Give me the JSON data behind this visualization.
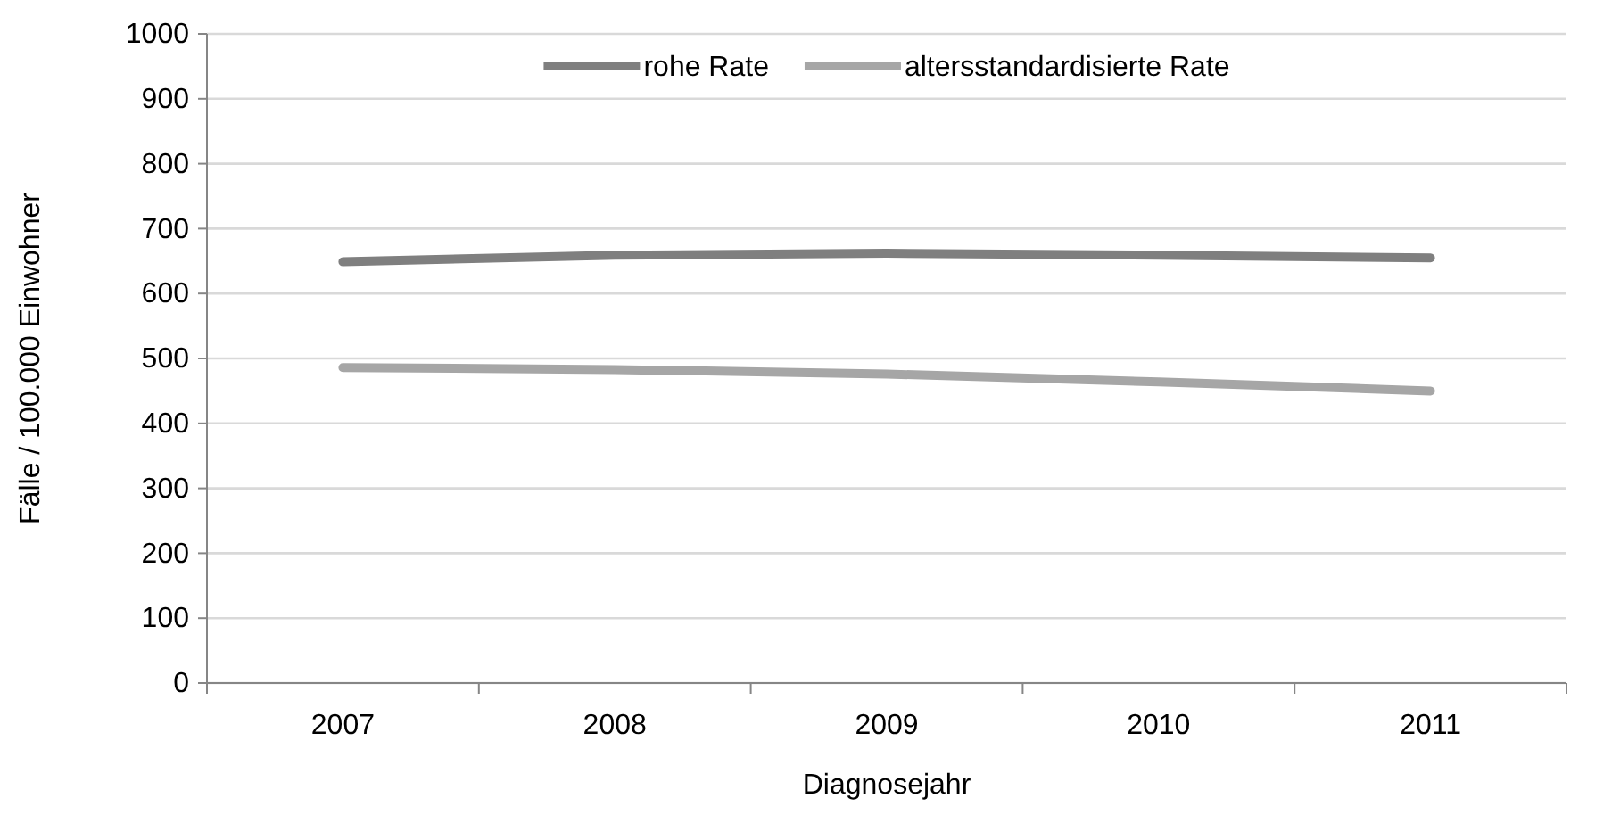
{
  "chart_data": {
    "type": "line",
    "xlabel": "Diagnosejahr",
    "ylabel": "Fälle / 100.000 Einwohner",
    "categories": [
      "2007",
      "2008",
      "2009",
      "2010",
      "2011"
    ],
    "ylim": [
      0,
      1000
    ],
    "yticks": [
      0,
      100,
      200,
      300,
      400,
      500,
      600,
      700,
      800,
      900,
      1000
    ],
    "grid": "y",
    "legend": "top",
    "marker": "none",
    "line_style": "solid",
    "series": [
      {
        "name": "rohe Rate",
        "color": "#7f7f7f",
        "values": [
          649,
          659,
          662,
          659,
          655
        ]
      },
      {
        "name": "altersstandardisierte Rate",
        "color": "#a6a6a6",
        "values": [
          486,
          483,
          476,
          464,
          450
        ]
      }
    ]
  }
}
